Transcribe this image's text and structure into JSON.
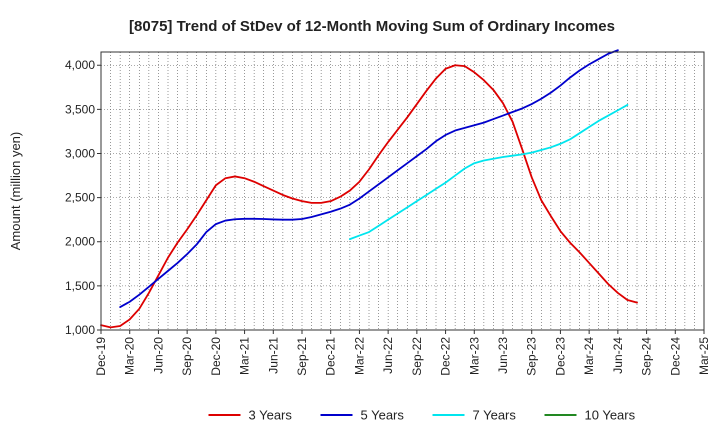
{
  "chart_data": {
    "type": "line",
    "title": "[8075]  Trend of StDev of 12-Month Moving Sum of Ordinary Incomes",
    "xlabel": "",
    "ylabel": "Amount (million yen)",
    "ylim": [
      1000,
      4150
    ],
    "yticks": [
      1000,
      1500,
      2000,
      2500,
      3000,
      3500,
      4000
    ],
    "ytick_labels": [
      "1,000",
      "1,500",
      "2,000",
      "2,500",
      "3,000",
      "3,500",
      "4,000"
    ],
    "x_start": "Dec-19",
    "x_end": "Mar-25",
    "xticks": [
      "Dec-19",
      "Mar-20",
      "Jun-20",
      "Sep-20",
      "Dec-20",
      "Mar-21",
      "Jun-21",
      "Sep-21",
      "Dec-21",
      "Mar-22",
      "Jun-22",
      "Sep-22",
      "Dec-22",
      "Mar-23",
      "Jun-23",
      "Sep-23",
      "Dec-23",
      "Mar-24",
      "Jun-24",
      "Sep-24",
      "Dec-24",
      "Mar-25"
    ],
    "grid": true,
    "legend_position": "bottom",
    "series": [
      {
        "name": "3 Years",
        "color": "#dd0000",
        "start_index": 0,
        "values": [
          1055,
          1030,
          1045,
          1120,
          1240,
          1420,
          1620,
          1820,
          1990,
          2140,
          2300,
          2470,
          2640,
          2720,
          2740,
          2720,
          2680,
          2630,
          2580,
          2530,
          2490,
          2460,
          2440,
          2440,
          2460,
          2510,
          2580,
          2680,
          2820,
          2980,
          3130,
          3270,
          3410,
          3560,
          3710,
          3850,
          3960,
          4000,
          3990,
          3920,
          3830,
          3720,
          3570,
          3360,
          3050,
          2730,
          2470,
          2290,
          2120,
          1990,
          1880,
          1760,
          1640,
          1520,
          1420,
          1340,
          1310
        ]
      },
      {
        "name": "5 Years",
        "color": "#0000cc",
        "start_index": 2,
        "values": [
          1260,
          1320,
          1400,
          1490,
          1580,
          1670,
          1760,
          1860,
          1970,
          2110,
          2200,
          2240,
          2255,
          2260,
          2260,
          2258,
          2253,
          2250,
          2250,
          2258,
          2280,
          2310,
          2340,
          2375,
          2420,
          2490,
          2570,
          2650,
          2730,
          2810,
          2890,
          2970,
          3050,
          3140,
          3210,
          3260,
          3290,
          3320,
          3350,
          3390,
          3430,
          3470,
          3510,
          3560,
          3620,
          3690,
          3770,
          3860,
          3940,
          4010,
          4070,
          4130,
          4170
        ]
      },
      {
        "name": "7 Years",
        "color": "#00e5ee",
        "start_index": 26,
        "values": [
          2030,
          2070,
          2110,
          2180,
          2250,
          2320,
          2390,
          2460,
          2530,
          2600,
          2670,
          2750,
          2830,
          2890,
          2920,
          2940,
          2960,
          2975,
          2990,
          3010,
          3040,
          3070,
          3110,
          3160,
          3230,
          3300,
          3370,
          3430,
          3490,
          3550
        ]
      },
      {
        "name": "10 Years",
        "color": "#228822",
        "start_index": 0,
        "values": []
      }
    ]
  }
}
